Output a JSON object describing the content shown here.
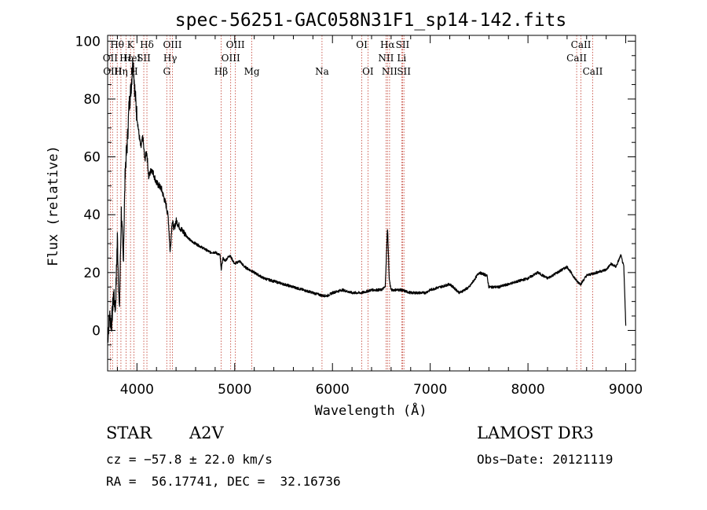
{
  "chart_data": {
    "type": "line",
    "title": "spec-56251-GAC058N31F1_sp14-142.fits",
    "xlabel": "Wavelength (Å)",
    "ylabel": "Flux (relative)",
    "xlim": [
      3700,
      9100
    ],
    "ylim": [
      -14,
      102
    ],
    "xticks": [
      4000,
      5000,
      6000,
      7000,
      8000,
      9000
    ],
    "yticks": [
      0,
      20,
      40,
      60,
      80,
      100
    ],
    "grid": false,
    "series": [
      {
        "name": "spectrum",
        "x": [
          3700,
          3720,
          3740,
          3760,
          3780,
          3800,
          3820,
          3840,
          3860,
          3880,
          3900,
          3920,
          3940,
          3960,
          3980,
          4000,
          4020,
          4040,
          4060,
          4080,
          4100,
          4120,
          4150,
          4200,
          4250,
          4300,
          4320,
          4340,
          4360,
          4380,
          4400,
          4450,
          4500,
          4550,
          4600,
          4650,
          4700,
          4750,
          4800,
          4850,
          4861,
          4880,
          4900,
          4950,
          5000,
          5050,
          5100,
          5150,
          5200,
          5300,
          5400,
          5500,
          5600,
          5700,
          5800,
          5900,
          5950,
          6000,
          6100,
          6200,
          6300,
          6400,
          6500,
          6540,
          6563,
          6580,
          6600,
          6700,
          6800,
          6900,
          6950,
          7000,
          7100,
          7200,
          7300,
          7400,
          7500,
          7580,
          7600,
          7700,
          7800,
          7900,
          8000,
          8100,
          8200,
          8300,
          8400,
          8500,
          8540,
          8600,
          8700,
          8800,
          8850,
          8900,
          8950,
          8980,
          9000
        ],
        "values": [
          -3,
          5,
          2,
          12,
          8,
          32,
          6,
          41,
          24,
          56,
          64,
          78,
          84,
          94,
          82,
          74,
          68,
          63,
          67,
          59,
          62,
          53,
          56,
          51,
          49,
          43,
          39,
          27,
          38,
          35,
          38,
          35,
          33,
          31,
          30,
          29,
          28,
          27,
          27,
          26,
          21,
          25,
          24,
          26,
          23,
          24,
          22,
          21,
          20,
          18,
          17,
          16,
          15,
          14,
          13,
          12,
          12,
          13,
          14,
          13,
          13,
          14,
          14,
          15,
          36,
          18,
          14,
          14,
          13,
          13,
          13,
          14,
          15,
          16,
          13,
          15,
          20,
          19,
          15,
          15,
          16,
          17,
          18,
          20,
          18,
          20,
          22,
          17,
          16,
          19,
          20,
          21,
          23,
          22,
          26,
          22,
          2
        ]
      }
    ],
    "line_labels": {
      "row1": [
        {
          "text": "Hθ",
          "w": 3798
        },
        {
          "text": "K",
          "w": 3934
        },
        {
          "text": "Hδ",
          "w": 4102
        },
        {
          "text": "OIII",
          "w": 4363
        },
        {
          "text": "OIII",
          "w": 5007
        },
        {
          "text": "OI",
          "w": 6300
        },
        {
          "text": "Hα",
          "w": 6563
        },
        {
          "text": "SII",
          "w": 6717
        },
        {
          "text": "CaII",
          "w": 8542
        }
      ],
      "row2": [
        {
          "text": "OII",
          "w": 3727
        },
        {
          "text": "Hε",
          "w": 3889
        },
        {
          "text": "HeI",
          "w": 3950
        },
        {
          "text": "SII",
          "w": 4070
        },
        {
          "text": "Hγ",
          "w": 4340
        },
        {
          "text": "OIII",
          "w": 4959
        },
        {
          "text": "NII",
          "w": 6548
        },
        {
          "text": "Li",
          "w": 6708
        },
        {
          "text": "CaII",
          "w": 8498
        }
      ],
      "row3": [
        {
          "text": "OIII",
          "w": 3750
        },
        {
          "text": "Hη",
          "w": 3836
        },
        {
          "text": "H",
          "w": 3969
        },
        {
          "text": "G",
          "w": 4305
        },
        {
          "text": "Hβ",
          "w": 4861
        },
        {
          "text": "Mg",
          "w": 5175
        },
        {
          "text": "Na",
          "w": 5893
        },
        {
          "text": "OI",
          "w": 6363
        },
        {
          "text": "NII",
          "w": 6584
        },
        {
          "text": "SII",
          "w": 6731
        },
        {
          "text": "CaII",
          "w": 8662
        }
      ]
    },
    "line_marks": [
      3727,
      3750,
      3798,
      3836,
      3889,
      3934,
      3969,
      4070,
      4102,
      4305,
      4340,
      4363,
      4861,
      4959,
      5007,
      5175,
      5893,
      6300,
      6363,
      6548,
      6563,
      6584,
      6708,
      6717,
      6731,
      8498,
      8542,
      8662
    ]
  },
  "info": {
    "class": "STAR",
    "subclass": "A2V",
    "survey": "LAMOST DR3",
    "cz": "cz = −57.8 ± 22.0 km/s",
    "obs_date": "Obs−Date: 20121119",
    "radec": "RA =  56.17741, DEC =  32.16736"
  },
  "colors": {
    "spectrum": "#000000",
    "line_marker": "#c0392b",
    "axis": "#000000"
  }
}
